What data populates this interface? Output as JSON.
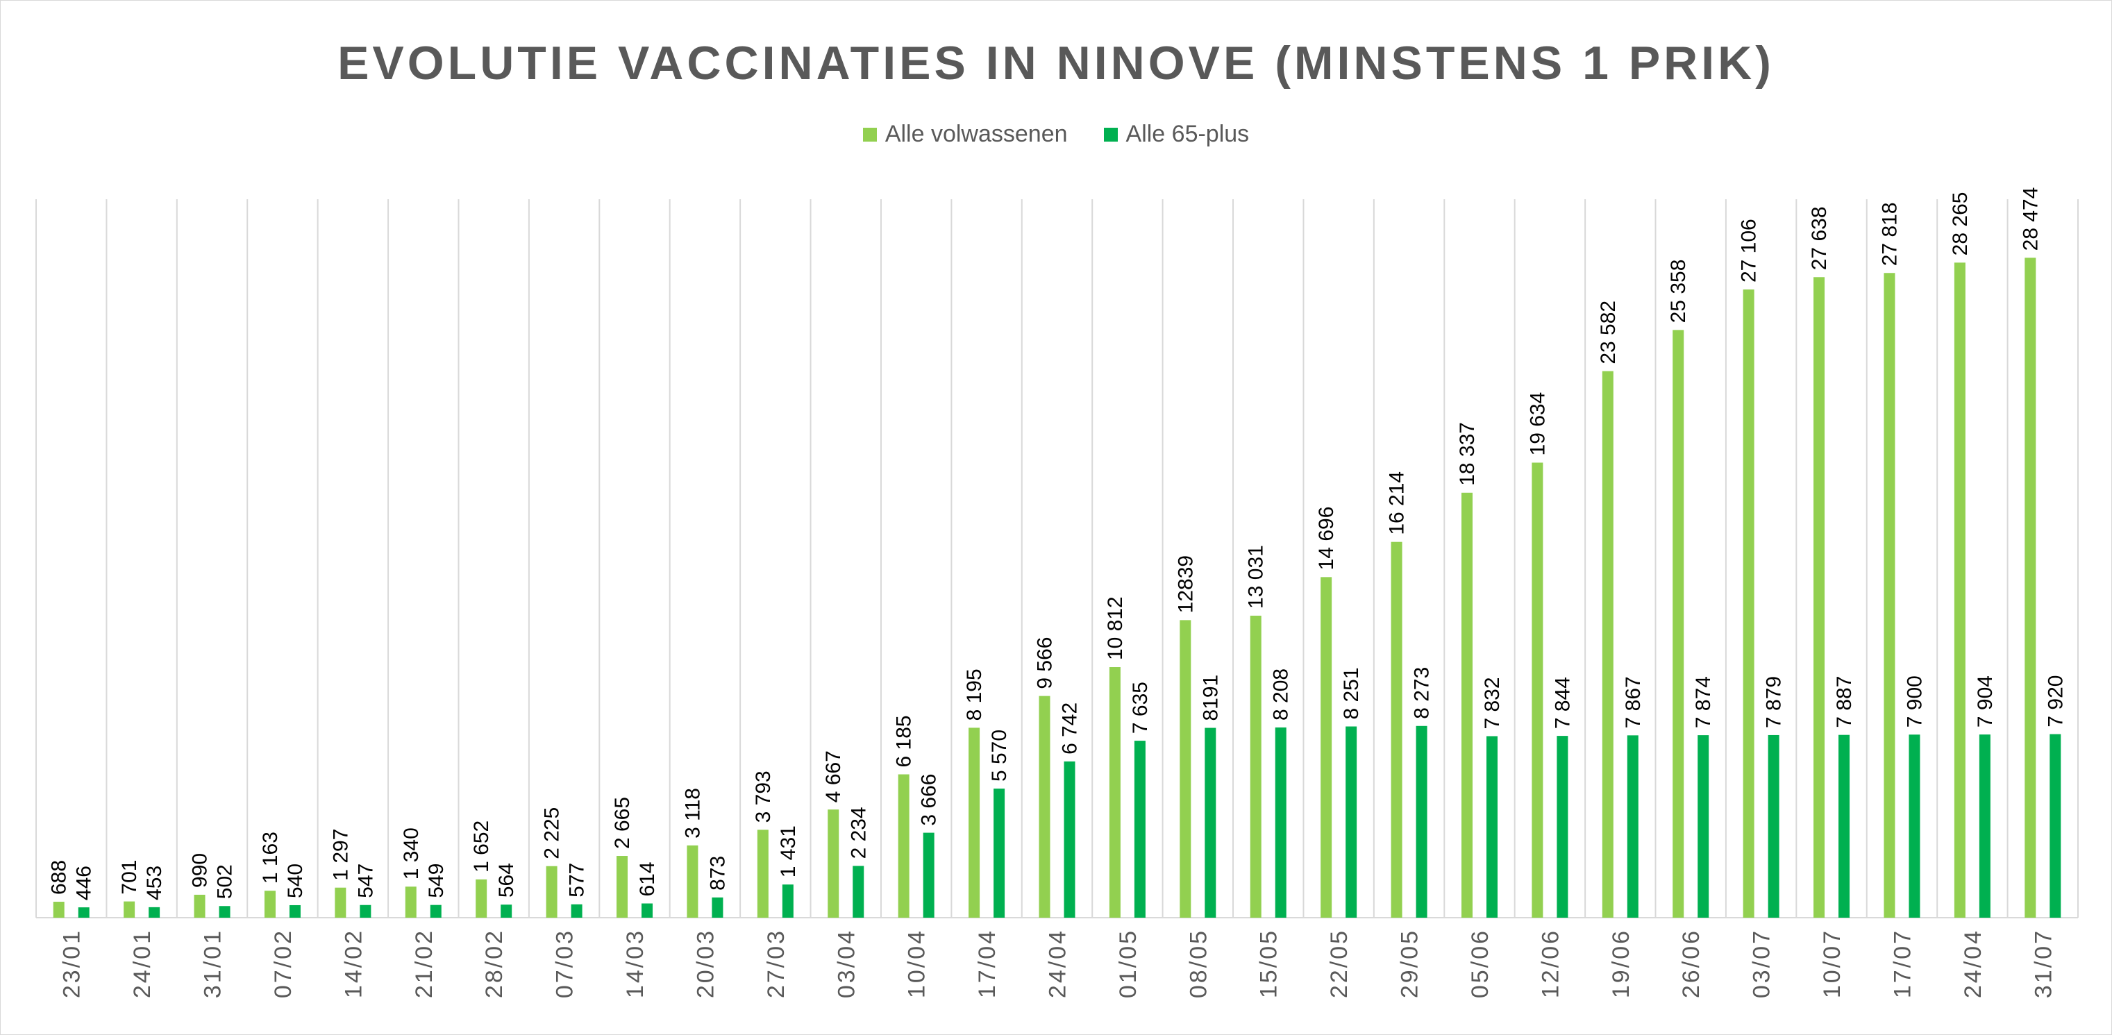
{
  "chart_data": {
    "type": "bar",
    "title": "EVOLUTIE VACCINATIES IN NINOVE (MINSTENS 1 PRIK)",
    "xlabel": "",
    "ylabel": "",
    "ylim": [
      0,
      31000
    ],
    "grid": "vertical",
    "legend_position": "top",
    "categories": [
      "23/01",
      "24/01",
      "31/01",
      "07/02",
      "14/02",
      "21/02",
      "28/02",
      "07/03",
      "14/03",
      "20/03",
      "27/03",
      "03/04",
      "10/04",
      "17/04",
      "24/04",
      "01/05",
      "08/05",
      "15/05",
      "22/05",
      "29/05",
      "05/06",
      "12/06",
      "19/06",
      "26/06",
      "03/07",
      "10/07",
      "17/07",
      "24/04",
      "31/07"
    ],
    "series": [
      {
        "name": "Alle volwassenen",
        "color": "#92d050",
        "values": [
          688,
          701,
          990,
          1163,
          1297,
          1340,
          1652,
          2225,
          2665,
          3118,
          3793,
          4667,
          6185,
          8195,
          9566,
          10812,
          12839,
          13031,
          14696,
          16214,
          18337,
          19634,
          23582,
          25358,
          27106,
          27638,
          27818,
          28265,
          28474
        ],
        "labels": [
          "688",
          "701",
          "990",
          "1 163",
          "1 297",
          "1 340",
          "1 652",
          "2 225",
          "2 665",
          "3 118",
          "3 793",
          "4 667",
          "6 185",
          "8 195",
          "9 566",
          "10 812",
          "12839",
          "13 031",
          "14 696",
          "16 214",
          "18 337",
          "19 634",
          "23 582",
          "25 358",
          "27 106",
          "27 638",
          "27 818",
          "28 265",
          "28 474"
        ]
      },
      {
        "name": "Alle 65-plus",
        "color": "#00b050",
        "values": [
          446,
          453,
          502,
          540,
          547,
          549,
          564,
          577,
          614,
          873,
          1431,
          2234,
          3666,
          5570,
          6742,
          7635,
          8191,
          8208,
          8251,
          8273,
          7832,
          7844,
          7867,
          7874,
          7879,
          7887,
          7900,
          7904,
          7920
        ],
        "labels": [
          "446",
          "453",
          "502",
          "540",
          "547",
          "549",
          "564",
          "577",
          "614",
          "873",
          "1 431",
          "2 234",
          "3 666",
          "5 570",
          "6 742",
          "7 635",
          "8191",
          "8 208",
          "8 251",
          "8 273",
          "7 832",
          "7 844",
          "7 867",
          "7 874",
          "7 879",
          "7 887",
          "7 900",
          "7 904",
          "7 920"
        ]
      }
    ]
  },
  "colors": {
    "gridline": "#d9d9d9",
    "axis": "#d9d9d9",
    "text": "#595959"
  }
}
